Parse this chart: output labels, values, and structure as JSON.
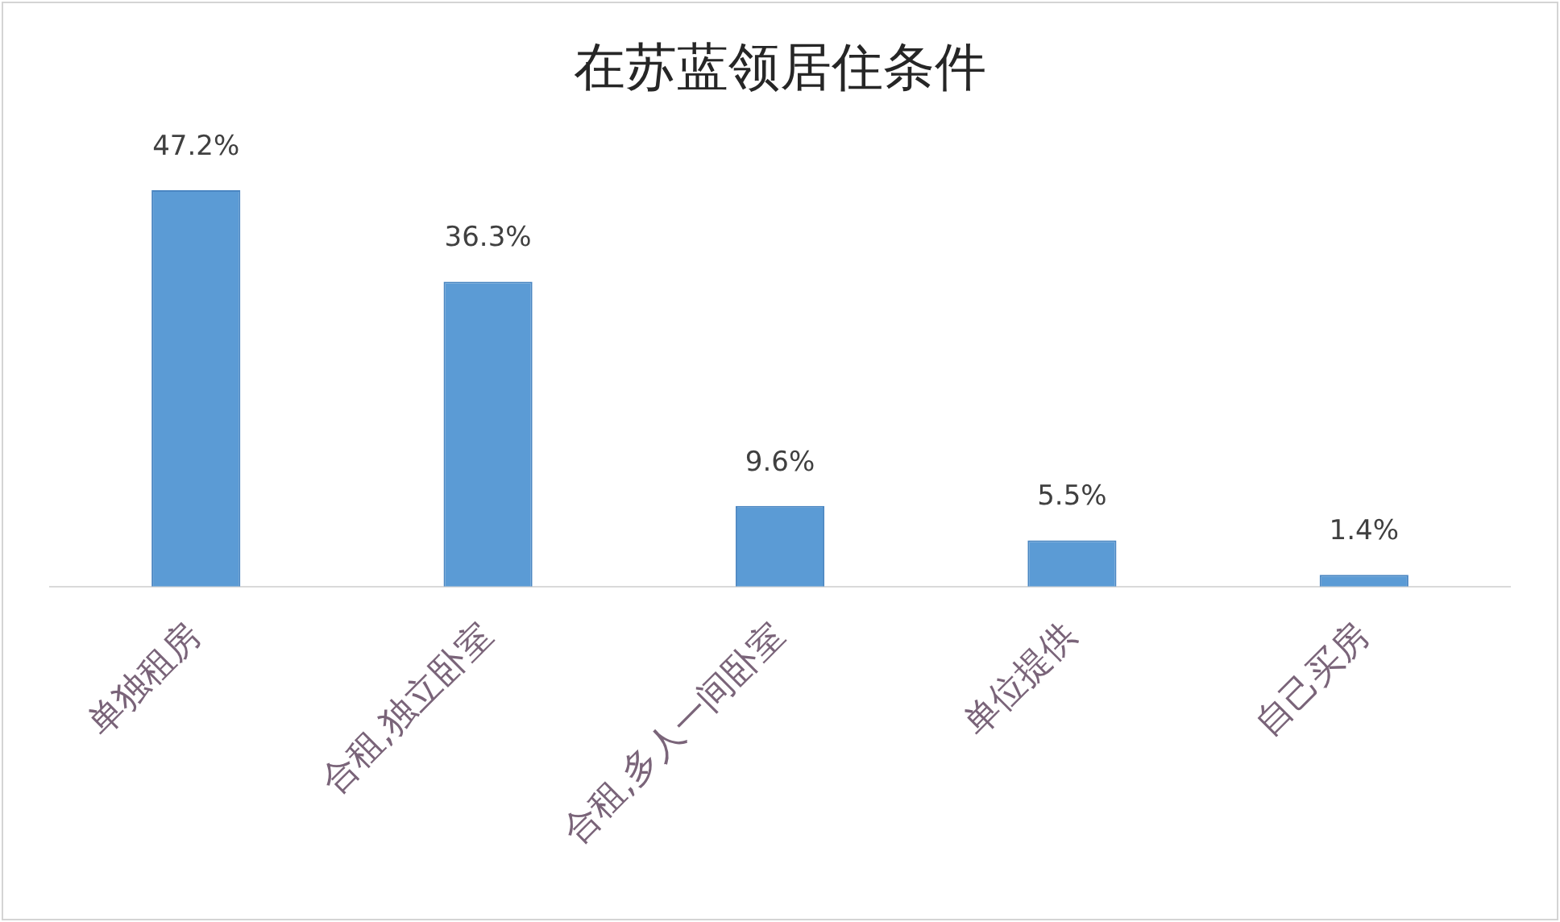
{
  "chart_data": {
    "type": "bar",
    "title": "在苏蓝领居住条件",
    "categories": [
      "单独租房",
      "合租,独立卧室",
      "合租,多人一间卧室",
      "单位提供",
      "自己买房"
    ],
    "values": [
      47.2,
      36.3,
      9.6,
      5.5,
      1.4
    ],
    "value_labels": [
      "47.2%",
      "36.3%",
      "9.6%",
      "5.5%",
      "1.4%"
    ],
    "color": "#5b9bd5",
    "tick_labels": "x",
    "legend": false
  }
}
